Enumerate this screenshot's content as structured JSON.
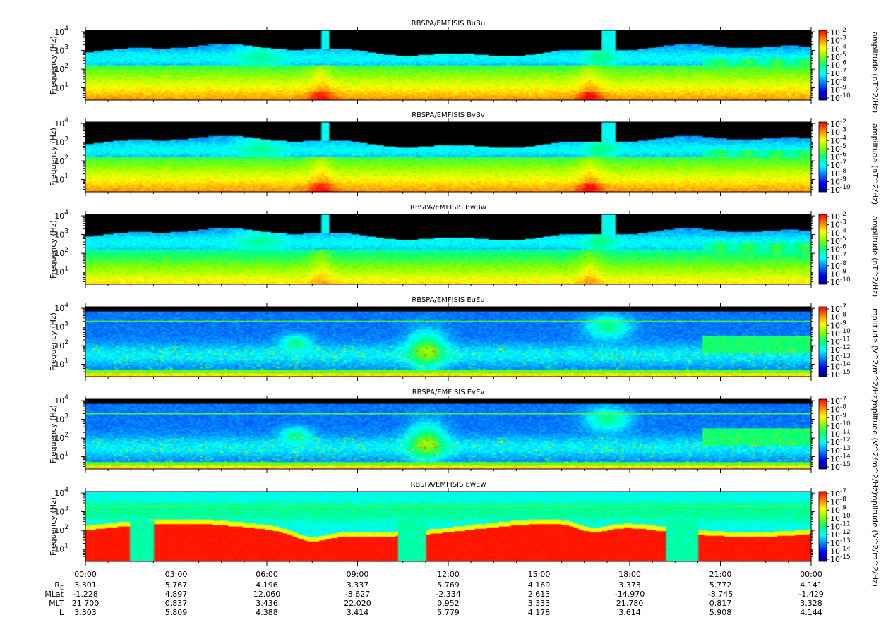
{
  "chart_data": {
    "type": "heatmap",
    "ylabel": "Frequency (Hz)",
    "y_ticks": [
      {
        "base": "10",
        "exp": "1"
      },
      {
        "base": "10",
        "exp": "2"
      },
      {
        "base": "10",
        "exp": "3"
      },
      {
        "base": "10",
        "exp": "4"
      }
    ],
    "ylim": [
      2.2,
      12000
    ],
    "y_scale": "log",
    "x_ticks": [
      "00:00",
      "03:00",
      "06:00",
      "09:00",
      "12:00",
      "15:00",
      "18:00",
      "21:00",
      "00:00"
    ],
    "panels": [
      {
        "title": "RBSPA/EMFISIS  BuBu",
        "cblabel": "amplitude (nT^2/Hz)",
        "cb_exps": [
          "-2",
          "-3",
          "-4",
          "-5",
          "-6",
          "-7",
          "-8",
          "-9",
          "-10"
        ],
        "type": "b_normal"
      },
      {
        "title": "RBSPA/EMFISIS  BvBv",
        "cblabel": "amplitude (nT^2/Hz)",
        "cb_exps": [
          "-2",
          "-3",
          "-4",
          "-5",
          "-6",
          "-7",
          "-8",
          "-9",
          "-10"
        ],
        "type": "b_normal"
      },
      {
        "title": "RBSPA/EMFISIS  BwBw",
        "cblabel": "amplitude (nT^2/Hz)",
        "cb_exps": [
          "-2",
          "-3",
          "-4",
          "-5",
          "-6",
          "-7",
          "-8",
          "-9",
          "-10"
        ],
        "type": "b_weak"
      },
      {
        "title": "RBSPA/EMFISIS  EuEu",
        "cblabel": "mplitude (V^2/m^2/Hz)",
        "cb_exps": [
          "-7",
          "-8",
          "-9",
          "-10",
          "-11",
          "-12",
          "-13",
          "-14",
          "-15"
        ],
        "type": "e_normal"
      },
      {
        "title": "RBSPA/EMFISIS  EvEv",
        "cblabel": "mplitude (V^2/m^2/Hz)",
        "cb_exps": [
          "-7",
          "-8",
          "-9",
          "-10",
          "-11",
          "-12",
          "-13",
          "-14",
          "-15"
        ],
        "type": "e_normal"
      },
      {
        "title": "RBSPA/EMFISIS  EwEw",
        "cblabel": "mplitude (V^2/m^2/Hz)",
        "cb_exps": [
          "-7",
          "-8",
          "-9",
          "-10",
          "-11",
          "-12",
          "-13",
          "-14",
          "-15"
        ],
        "type": "e_strong"
      }
    ],
    "ephemeris": {
      "labels": [
        "R",
        "MLat",
        "MLT",
        "L"
      ],
      "r_subscript": "E",
      "rows": [
        [
          "3.301",
          "5.767",
          "4.196",
          "3.337",
          "5.769",
          "4.169",
          "3.373",
          "5.772",
          "4.141"
        ],
        [
          "-1.228",
          "4.897",
          "12.060",
          "-8.627",
          "-2.334",
          "2.613",
          "-14.970",
          "-8.745",
          "-1.429"
        ],
        [
          "21.700",
          "0.837",
          "3.436",
          "22.020",
          "0.952",
          "3.333",
          "21.780",
          "0.817",
          "3.328"
        ],
        [
          "3.303",
          "5.809",
          "4.388",
          "3.414",
          "5.779",
          "4.178",
          "3.614",
          "5.908",
          "4.144"
        ]
      ]
    },
    "colormap": [
      "#000080",
      "#0000ff",
      "#0080ff",
      "#00ffff",
      "#00ff80",
      "#80ff00",
      "#ffff00",
      "#ff8000",
      "#ff0000"
    ]
  }
}
